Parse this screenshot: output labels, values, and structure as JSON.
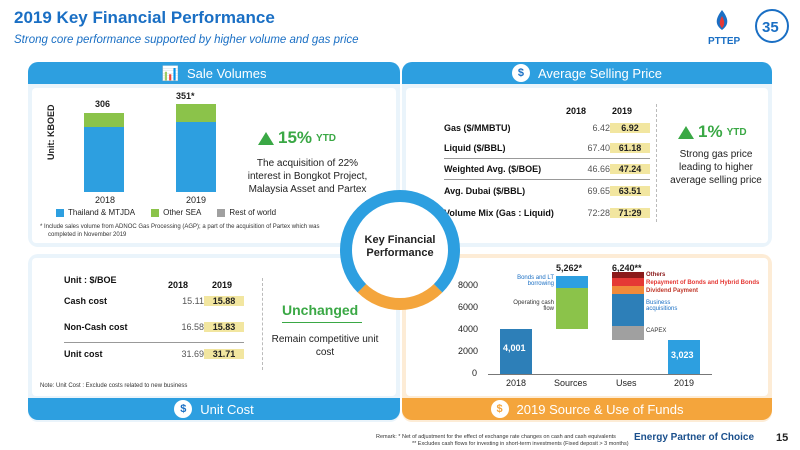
{
  "header": {
    "title": "2019 Key Financial Performance",
    "subtitle": "Strong core performance supported by higher volume and gas price",
    "logo_text": "PTTEP",
    "anniv_text": "35"
  },
  "colors": {
    "blue": "#1a6fc4",
    "lightblue": "#2d9fe0",
    "green": "#8bc34a",
    "gray": "#a0a0a0",
    "orange": "#f4a53c",
    "darkred": "#c0392b",
    "teal": "#2d7fb8",
    "highlight": "#f2e6a0"
  },
  "sales": {
    "header": "Sale Volumes",
    "unit": "Unit: KBOED",
    "bars": [
      {
        "year": "2018",
        "total": "306"
      },
      {
        "year": "2019",
        "total": "351*"
      }
    ],
    "legend": [
      "Thailand & MTJDA",
      "Other SEA",
      "Rest of world"
    ],
    "ytd_value": "15%",
    "ytd_label": "YTD",
    "desc": "The acquisition of 22% interest in Bongkot Project, Malaysia Asset and Partex",
    "footnote1": "* Include sales volume from ADNOC Gas Processing (AGP); a part of the acquisition of Partex which was",
    "footnote2": "completed in November 2019"
  },
  "asp": {
    "header": "Average Selling Price",
    "col18": "2018",
    "col19": "2019",
    "rows": [
      {
        "label": "Gas ($/MMBTU)",
        "v18": "6.42",
        "v19": "6.92"
      },
      {
        "label": "Liquid ($/BBL)",
        "v18": "67.40",
        "v19": "61.18"
      },
      {
        "label": "Weighted Avg. ($/BOE)",
        "v18": "46.66",
        "v19": "47.24"
      },
      {
        "label": "Avg. Dubai ($/BBL)",
        "v18": "69.65",
        "v19": "63.51"
      },
      {
        "label": "Volume Mix (Gas : Liquid)",
        "v18": "72:28",
        "v19": "71:29"
      }
    ],
    "ytd_value": "1%",
    "ytd_label": "YTD",
    "desc": "Strong gas price leading to higher average selling price"
  },
  "center": {
    "label": "Key Financial Performance"
  },
  "unitcost": {
    "header": "Unit Cost",
    "unit": "Unit : $/BOE",
    "col18": "2018",
    "col19": "2019",
    "rows": [
      {
        "label": "Cash cost",
        "v18": "15.11",
        "v19": "15.88"
      },
      {
        "label": "Non-Cash cost",
        "v18": "16.58",
        "v19": "15.83"
      },
      {
        "label": "Unit cost",
        "v18": "31.69",
        "v19": "31.71"
      }
    ],
    "status": "Unchanged",
    "desc": "Remain competitive unit cost",
    "note": "Note:  Unit Cost : Exclude costs related to new business"
  },
  "funds": {
    "header": "2019 Source & Use of Funds",
    "yticks": [
      "8000",
      "6000",
      "4000",
      "2000",
      "0"
    ],
    "xcats": [
      "2018",
      "Sources",
      "Uses",
      "2019"
    ],
    "label_2018": "4,001",
    "label_2019": "3,023",
    "sources_total": "5,262*",
    "uses_total": "6,240**",
    "lbl_bonds": "Bonds and LT borrowing",
    "lbl_opcf": "Operating cash flow",
    "lbl_others": "Others",
    "lbl_repay": "Repayment of Bonds and Hybrid Bonds",
    "lbl_div": "Dividend Payment",
    "lbl_busacq": "Business acquisitions",
    "lbl_capex": "CAPEX"
  },
  "footer": {
    "remark1": "Remark:  *   Net of adjustment for the effect of exchange rate changes on cash and cash equivalents",
    "remark2": "**   Excludes cash flows for investing in short-term investments (Fixed deposit > 3 months)",
    "tagline": "Energy Partner of Choice",
    "page": "15"
  }
}
